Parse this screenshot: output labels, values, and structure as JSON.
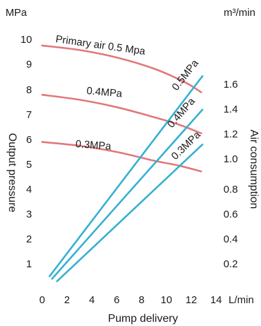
{
  "chart_data": {
    "type": "line",
    "xlabel": "Pump delivery",
    "x_unit": "L/min",
    "ylabel_left": "Output pressure",
    "y_unit_left": "MPa",
    "ylabel_right": "Air consumption",
    "y_unit_right": "m³/min",
    "xlim": [
      0,
      14
    ],
    "ylim_left": [
      0,
      10.5
    ],
    "ylim_right": [
      0,
      2.0
    ],
    "x_ticks": [
      "0",
      "2",
      "4",
      "6",
      "8",
      "10",
      "12",
      "14"
    ],
    "y_ticks_left": [
      "1",
      "2",
      "3",
      "4",
      "5",
      "6",
      "7",
      "8",
      "9",
      "10"
    ],
    "y_ticks_right": [
      "0.2",
      "0.4",
      "0.6",
      "0.8",
      "1.0",
      "1.2",
      "1.4",
      "1.6"
    ],
    "colors": {
      "pressure": "#e0787a",
      "consumption": "#35b0d2"
    },
    "pressure_series": [
      {
        "label": "Primary air 0.5 Mpa",
        "axis": "left",
        "x": [
          0,
          3,
          6,
          9,
          11.5,
          12.8
        ],
        "y": [
          9.78,
          9.6,
          9.3,
          8.85,
          8.3,
          7.9
        ]
      },
      {
        "label": "0.4MPa",
        "axis": "left",
        "x": [
          0,
          3,
          6,
          9,
          11,
          12.8
        ],
        "y": [
          7.8,
          7.6,
          7.3,
          6.9,
          6.6,
          6.25
        ]
      },
      {
        "label": "0.3MPa",
        "axis": "left",
        "x": [
          0,
          3,
          6,
          9,
          11,
          12.8
        ],
        "y": [
          5.9,
          5.75,
          5.5,
          5.15,
          4.95,
          4.72
        ]
      }
    ],
    "consumption_series": [
      {
        "label": "0.5MPa",
        "axis": "right",
        "x": [
          0.6,
          12.9
        ],
        "y": [
          0.1,
          1.71
        ]
      },
      {
        "label": "0.4MPa",
        "axis": "right",
        "x": [
          0.8,
          12.9
        ],
        "y": [
          0.08,
          1.44
        ]
      },
      {
        "label": "0.3MPa",
        "axis": "right",
        "x": [
          1.2,
          12.9
        ],
        "y": [
          0.06,
          1.16
        ]
      }
    ]
  }
}
